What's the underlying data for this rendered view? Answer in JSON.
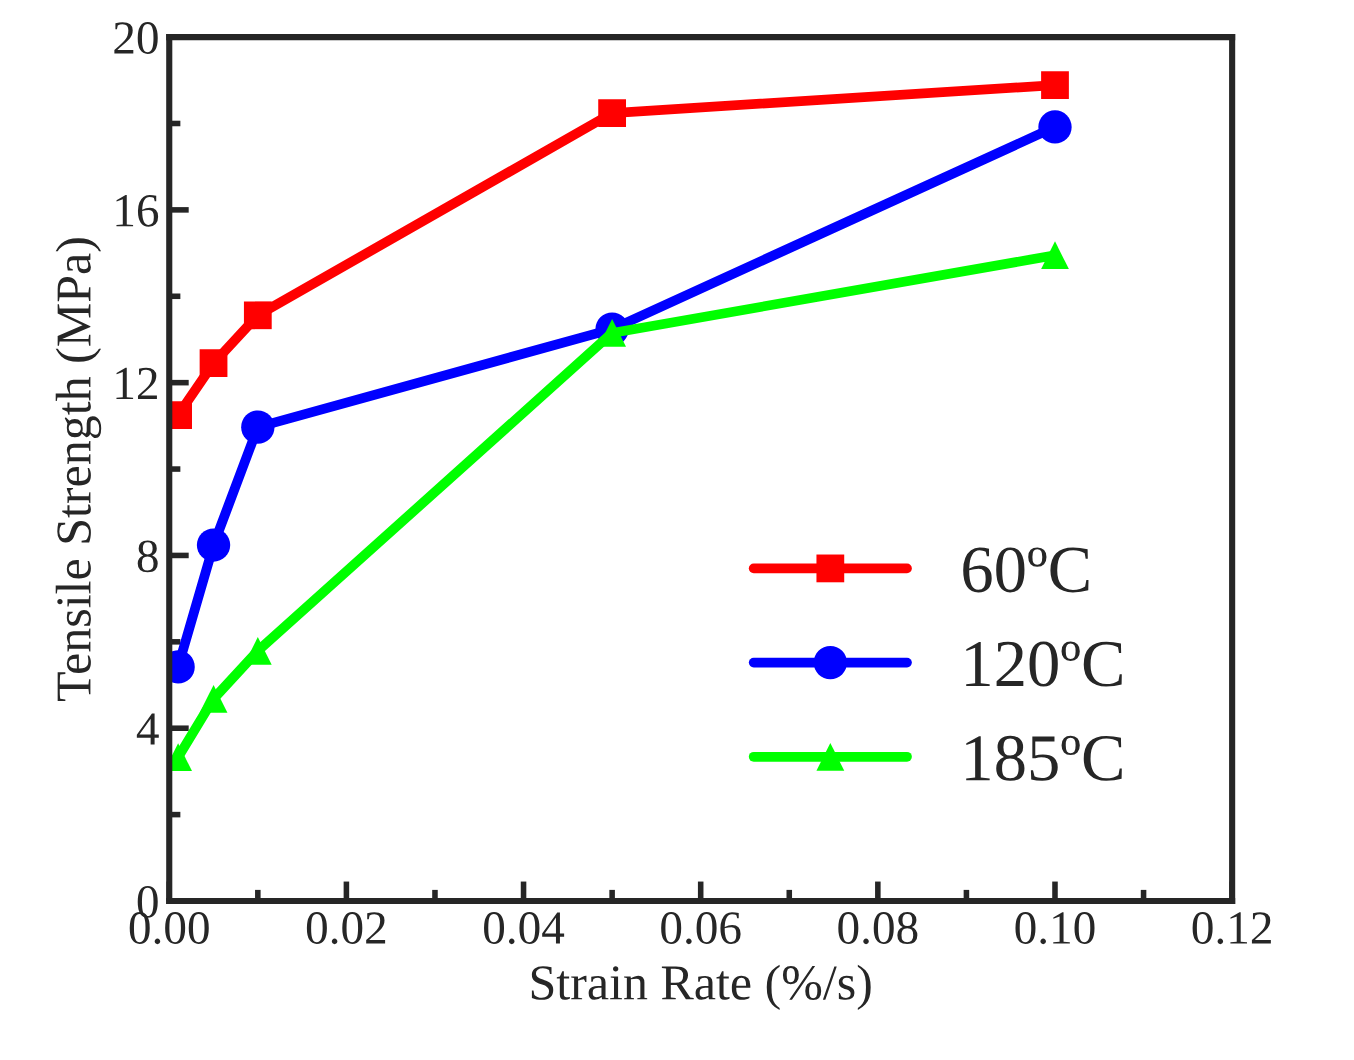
{
  "chart_data": {
    "type": "line",
    "xlabel": "Strain Rate (%/s)",
    "ylabel": "Tensile Strength (MPa)",
    "x": [
      0.001,
      0.005,
      0.01,
      0.05,
      0.1
    ],
    "series": [
      {
        "name": "60ºC",
        "color": "#ff0000",
        "marker": "square",
        "values": [
          11.25,
          12.45,
          13.56,
          18.24,
          18.89
        ]
      },
      {
        "name": "120ºC",
        "color": "#0000ff",
        "marker": "circle",
        "values": [
          5.42,
          8.24,
          10.97,
          13.24,
          17.92
        ]
      },
      {
        "name": "185ºC",
        "color": "#00ff00",
        "marker": "triangle",
        "values": [
          3.33,
          4.68,
          5.79,
          13.15,
          14.95
        ]
      }
    ],
    "xlim": [
      0,
      0.12
    ],
    "xticks": [
      {
        "value": 0,
        "label": "0.00"
      },
      0.02,
      0.04,
      0.06,
      0.08,
      {
        "value": 0.1,
        "label": "0.10"
      },
      0.12
    ],
    "ylim": [
      0,
      20
    ],
    "yticks": [
      0,
      4,
      8,
      12,
      16,
      20
    ],
    "grid": false,
    "legend": "bottom right"
  }
}
